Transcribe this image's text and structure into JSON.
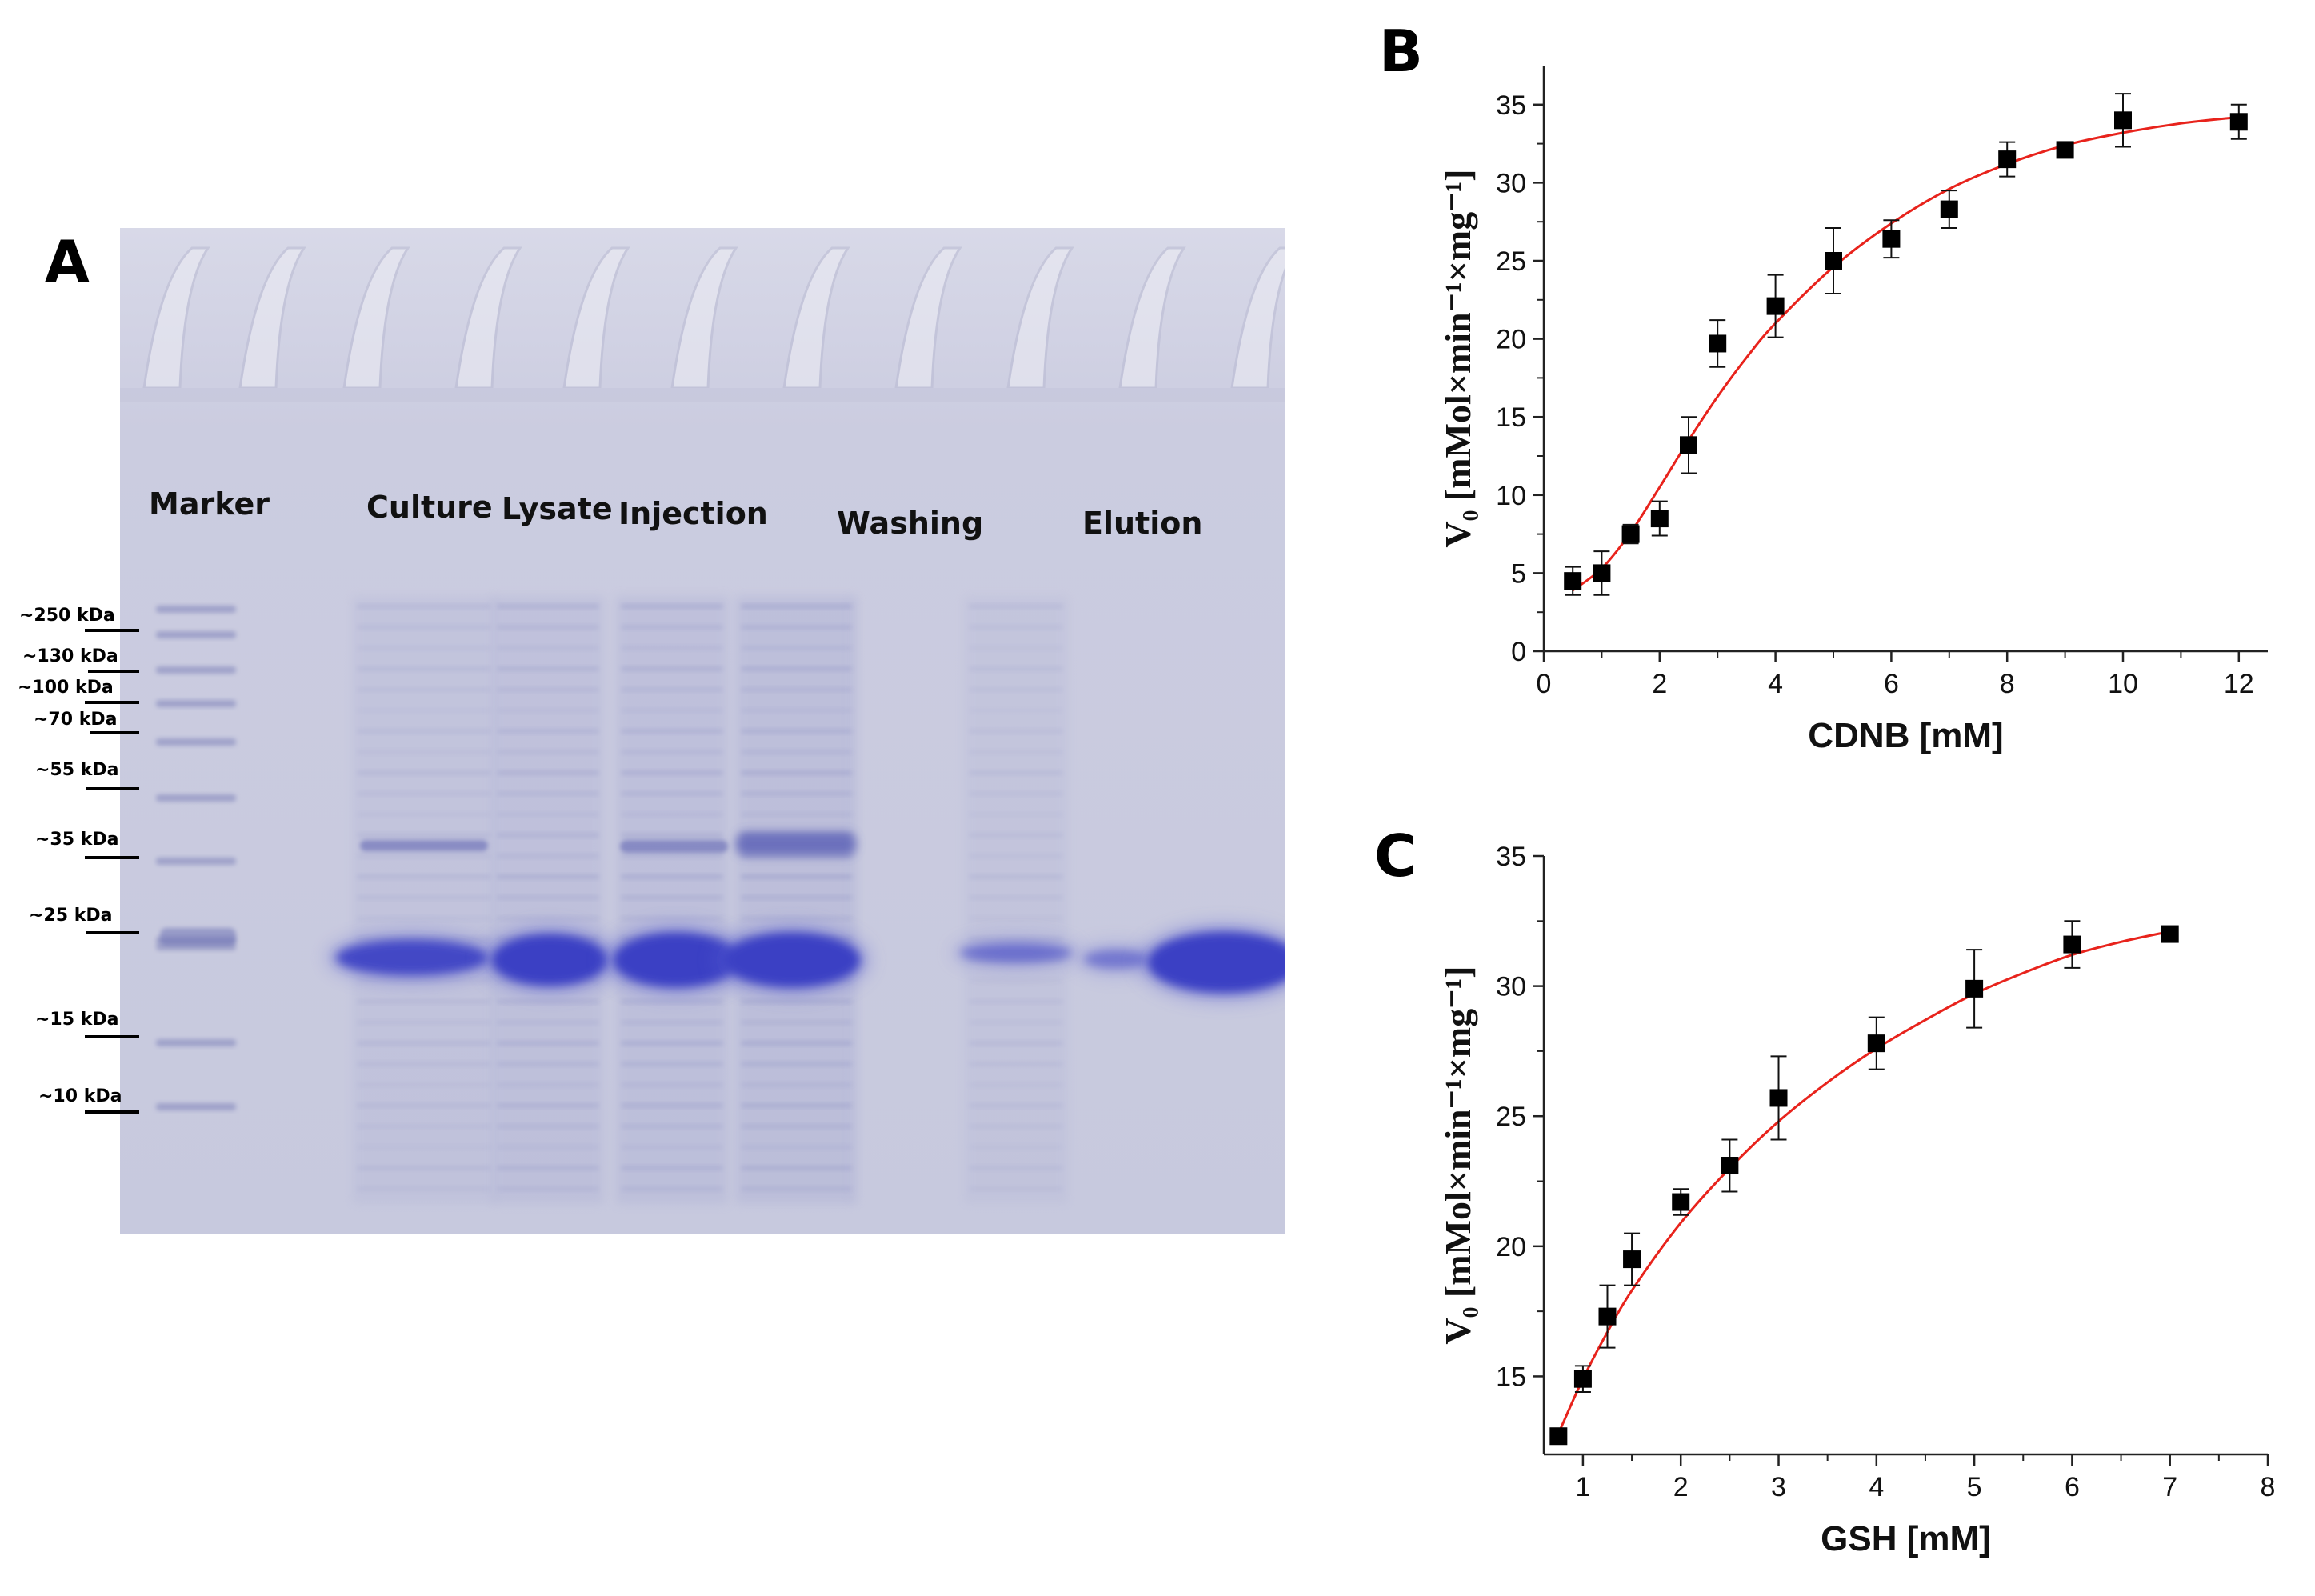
{
  "panels": {
    "a": "A",
    "b": "B",
    "c": "C"
  },
  "gel": {
    "lanes": [
      "Marker",
      "Culture",
      "Lysate",
      "Injection",
      "Washing",
      "Elution"
    ],
    "markers": [
      "~250 kDa",
      "~130 kDa",
      "~100 kDa",
      "~70 kDa",
      "~55 kDa",
      "~35 kDa",
      "~25 kDa",
      "~15 kDa",
      "~10 kDa"
    ],
    "colors": {
      "background": "#c9cadf",
      "band": "#3a3fc4"
    }
  },
  "chart_data": [
    {
      "type": "scatter",
      "title": "",
      "xlabel": "CDNB [mM]",
      "ylabel": "V₀ [mMol×min⁻¹×mg⁻¹]",
      "xlim": [
        0,
        12.5
      ],
      "ylim": [
        0,
        37.5
      ],
      "xticks": [
        0,
        2,
        4,
        6,
        8,
        10,
        12
      ],
      "yticks": [
        0,
        5,
        10,
        15,
        20,
        25,
        30,
        35
      ],
      "series": [
        {
          "name": "measured",
          "x": [
            0.5,
            1,
            1.5,
            2,
            2.5,
            3,
            4,
            5,
            6,
            7,
            8,
            9,
            10,
            12
          ],
          "y": [
            4.5,
            5.0,
            7.5,
            8.5,
            13.2,
            19.7,
            22.1,
            25.0,
            26.4,
            28.3,
            31.5,
            32.1,
            34.0,
            33.9
          ],
          "err": [
            0.9,
            1.4,
            0.6,
            1.1,
            1.8,
            1.5,
            2.0,
            2.1,
            1.2,
            1.2,
            1.1,
            0.3,
            1.7,
            1.1
          ]
        },
        {
          "name": "fit",
          "x": [
            0.5,
            1,
            1.5,
            2,
            2.5,
            3,
            3.5,
            4,
            5,
            6,
            7,
            8,
            9,
            10,
            11,
            12
          ],
          "y": [
            3.9,
            5.3,
            7.6,
            10.5,
            13.5,
            16.3,
            18.8,
            21.0,
            24.6,
            27.4,
            29.6,
            31.2,
            32.4,
            33.2,
            33.8,
            34.2
          ]
        }
      ],
      "colors": {
        "points": "#000000",
        "fit": "#e8231c"
      }
    },
    {
      "type": "scatter",
      "title": "",
      "xlabel": "GSH [mM]",
      "ylabel": "V₀ [mMol×min⁻¹×mg⁻¹]",
      "xlim": [
        0.6,
        8.0
      ],
      "ylim": [
        12.0,
        35.0
      ],
      "xticks": [
        1,
        2,
        3,
        4,
        5,
        6,
        7,
        8
      ],
      "yticks": [
        15,
        20,
        25,
        30,
        35
      ],
      "series": [
        {
          "name": "measured",
          "x": [
            0.75,
            1,
            1.25,
            1.5,
            2,
            2.5,
            3,
            4,
            5,
            6,
            7
          ],
          "y": [
            12.7,
            14.9,
            17.3,
            19.5,
            21.7,
            23.1,
            25.7,
            27.8,
            29.9,
            31.6,
            32.0
          ],
          "err": [
            0.2,
            0.5,
            1.2,
            1.0,
            0.5,
            1.0,
            1.6,
            1.0,
            1.5,
            0.9,
            0.2
          ]
        },
        {
          "name": "fit",
          "x": [
            0.75,
            1,
            1.25,
            1.5,
            2,
            2.5,
            3,
            3.5,
            4,
            4.5,
            5,
            5.5,
            6,
            6.5,
            7
          ],
          "y": [
            12.8,
            14.9,
            16.7,
            18.3,
            20.9,
            23.0,
            24.8,
            26.3,
            27.6,
            28.7,
            29.7,
            30.5,
            31.2,
            31.7,
            32.1
          ]
        }
      ],
      "colors": {
        "points": "#000000",
        "fit": "#e8231c"
      }
    }
  ]
}
